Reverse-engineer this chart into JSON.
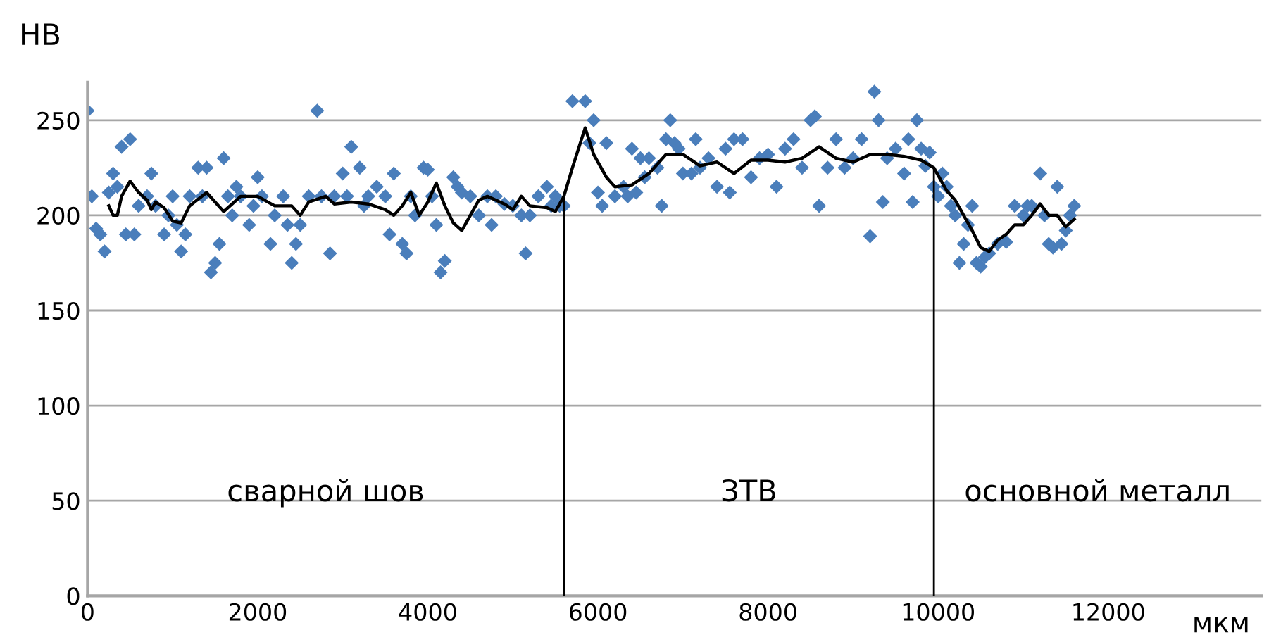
{
  "chart_data": {
    "type": "scatter",
    "xlabel": "мкм",
    "ylabel": "HB",
    "xlim": [
      0,
      13800
    ],
    "ylim": [
      0,
      270
    ],
    "xticks": [
      0,
      2000,
      4000,
      6000,
      8000,
      10000,
      12000
    ],
    "yticks": [
      0,
      50,
      100,
      150,
      200,
      250
    ],
    "grid": "y",
    "legend": false,
    "series": [
      {
        "marker": "diamond",
        "color": "#4a7ebb",
        "x": [
          0,
          50,
          100,
          150,
          200,
          250,
          300,
          350,
          400,
          450,
          500,
          550,
          600,
          700,
          750,
          800,
          900,
          950,
          1000,
          1050,
          1100,
          1150,
          1200,
          1300,
          1350,
          1400,
          1450,
          1500,
          1550,
          1600,
          1650,
          1700,
          1750,
          1800,
          1900,
          1950,
          2000,
          2050,
          2150,
          2200,
          2300,
          2350,
          2400,
          2450,
          2500,
          2600,
          2700,
          2750,
          2850,
          2900,
          3000,
          3050,
          3100,
          3200,
          3250,
          3300,
          3400,
          3500,
          3550,
          3600,
          3700,
          3750,
          3800,
          3850,
          3950,
          4000,
          4050,
          4100,
          4150,
          4200,
          4300,
          4350,
          4400,
          4500,
          4600,
          4700,
          4750,
          4800,
          4900,
          5000,
          5100,
          5150,
          5200,
          5300,
          5400,
          5450,
          5500,
          5550,
          5600,
          5700,
          5850,
          5900,
          5950,
          6000,
          6050,
          6100,
          6200,
          6300,
          6350,
          6400,
          6450,
          6500,
          6550,
          6600,
          6700,
          6750,
          6800,
          6850,
          6900,
          6950,
          7000,
          7100,
          7150,
          7200,
          7300,
          7400,
          7500,
          7550,
          7600,
          7700,
          7800,
          7900,
          8000,
          8100,
          8200,
          8300,
          8400,
          8500,
          8550,
          8600,
          8700,
          8800,
          8900,
          9000,
          9100,
          9200,
          9250,
          9300,
          9350,
          9400,
          9500,
          9600,
          9650,
          9700,
          9750,
          9800,
          9850,
          9900,
          9950,
          10000,
          10050,
          10100,
          10150,
          10200,
          10250,
          10300,
          10350,
          10400,
          10450,
          10500,
          10550,
          10600,
          10700,
          10800,
          10900,
          11000,
          11050,
          11100,
          11200,
          11250,
          11300,
          11350,
          11400,
          11450,
          11500,
          11550,
          11600
        ],
        "values": [
          255,
          210,
          193,
          190,
          181,
          212,
          222,
          215,
          236,
          190,
          240,
          190,
          205,
          210,
          222,
          205,
          190,
          200,
          210,
          195,
          181,
          190,
          210,
          225,
          210,
          225,
          170,
          175,
          185,
          230,
          210,
          200,
          215,
          210,
          195,
          205,
          220,
          210,
          185,
          200,
          210,
          195,
          175,
          185,
          195,
          210,
          255,
          210,
          180,
          210,
          222,
          210,
          236,
          225,
          205,
          210,
          215,
          210,
          190,
          222,
          185,
          180,
          210,
          200,
          225,
          224,
          210,
          195,
          170,
          176,
          220,
          215,
          212,
          210,
          200,
          210,
          195,
          210,
          206,
          205,
          200,
          180,
          200,
          210,
          215,
          205,
          210,
          205,
          205,
          260,
          260,
          238,
          250,
          212,
          205,
          238,
          210,
          215,
          210,
          235,
          212,
          230,
          220,
          230,
          225,
          205,
          240,
          250,
          238,
          235,
          222,
          222,
          240,
          225,
          230,
          215,
          235,
          212,
          240,
          240,
          220,
          230,
          232,
          215,
          235,
          240,
          225,
          250,
          252,
          205,
          225,
          240,
          225,
          230,
          240,
          189,
          265,
          250,
          207,
          230,
          235,
          222,
          240,
          207,
          250,
          235,
          226,
          233,
          215,
          210,
          222,
          215,
          205,
          200,
          175,
          185,
          195,
          205,
          175,
          173,
          178,
          180,
          185,
          186,
          205,
          200,
          205,
          205,
          222,
          200,
          185,
          183,
          215,
          185,
          192,
          200,
          205
        ]
      },
      {
        "type": "line",
        "color": "#000000",
        "marker": "none",
        "line_style": "solid",
        "x": [
          250,
          300,
          350,
          400,
          500,
          600,
          700,
          750,
          800,
          900,
          1000,
          1100,
          1200,
          1400,
          1500,
          1600,
          1800,
          2000,
          2200,
          2400,
          2500,
          2600,
          2800,
          2900,
          3100,
          3300,
          3500,
          3600,
          3700,
          3800,
          3900,
          4000,
          4100,
          4200,
          4300,
          4400,
          4500,
          4600,
          4700,
          4900,
          5000,
          5100,
          5200,
          5400,
          5500,
          5600,
          5700,
          5850,
          5950,
          6100,
          6200,
          6400,
          6600,
          6800,
          7000,
          7200,
          7400,
          7600,
          7800,
          8000,
          8200,
          8400,
          8600,
          8800,
          9000,
          9200,
          9400,
          9600,
          9800,
          9950,
          10100,
          10200,
          10300,
          10400,
          10500,
          10600,
          10700,
          10800,
          10900,
          11000,
          11100,
          11200,
          11300,
          11400,
          11500,
          11600
        ],
        "values": [
          205,
          200,
          200,
          210,
          218,
          212,
          208,
          203,
          207,
          204,
          197,
          196,
          205,
          212,
          207,
          202,
          210,
          210,
          205,
          205,
          200,
          207,
          210,
          206,
          207,
          206,
          203,
          200,
          205,
          212,
          200,
          207,
          217,
          205,
          196,
          192,
          200,
          208,
          210,
          206,
          203,
          210,
          205,
          204,
          202,
          210,
          225,
          246,
          232,
          220,
          215,
          216,
          222,
          232,
          232,
          226,
          228,
          222,
          229,
          229,
          228,
          230,
          236,
          230,
          228,
          232,
          232,
          231,
          229,
          225,
          213,
          208,
          200,
          192,
          183,
          181,
          187,
          190,
          195,
          195,
          200,
          206,
          200,
          200,
          194,
          198
        ]
      }
    ],
    "ref_lines": [
      {
        "axis": "x",
        "value": 5600,
        "color": "#000000"
      },
      {
        "axis": "x",
        "value": 9950,
        "color": "#000000"
      }
    ],
    "annotations": [
      "сварной шов",
      "ЗТВ",
      "основной металл"
    ]
  }
}
